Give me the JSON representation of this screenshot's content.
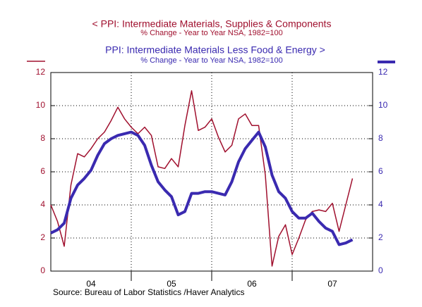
{
  "chart_data": {
    "type": "line",
    "series": [
      {
        "name": "<  PPI: Intermediate Materials, Supplies & Components",
        "subtitle": "% Change - Year to Year        NSA, 1982=100",
        "color": "#a0102e",
        "axis": "y",
        "values": [
          4.0,
          3.0,
          1.5,
          5.2,
          7.1,
          6.9,
          7.4,
          8.0,
          8.4,
          9.1,
          9.9,
          9.2,
          8.7,
          8.3,
          8.7,
          8.2,
          6.3,
          6.2,
          6.8,
          6.3,
          8.8,
          10.9,
          8.5,
          8.7,
          9.2,
          8.1,
          7.2,
          7.6,
          9.2,
          9.5,
          8.8,
          8.8,
          5.8,
          0.3,
          2.1,
          2.8,
          1.0,
          2.0,
          3.1,
          3.6,
          3.7,
          3.6,
          4.1,
          2.4,
          4.0,
          5.6
        ]
      },
      {
        "name": "PPI: Intermediate Materials Less Food & Energy  >",
        "subtitle": "% Change - Year to Year        NSA, 1982=100",
        "color": "#3a2ab0",
        "axis": "y2",
        "values": [
          2.3,
          2.5,
          2.9,
          4.4,
          5.2,
          5.6,
          6.1,
          7.0,
          7.7,
          8.0,
          8.2,
          8.3,
          8.4,
          8.2,
          7.6,
          6.4,
          5.4,
          4.9,
          4.5,
          3.4,
          3.6,
          4.7,
          4.7,
          4.8,
          4.8,
          4.7,
          4.6,
          5.4,
          6.6,
          7.4,
          7.9,
          8.4,
          7.5,
          5.8,
          4.8,
          4.4,
          3.6,
          3.2,
          3.2,
          3.5,
          3.0,
          2.6,
          2.4,
          1.6,
          1.7,
          1.9
        ]
      }
    ],
    "x": [
      0,
      1,
      2,
      3,
      4,
      5,
      6,
      7,
      8,
      9,
      10,
      11,
      12,
      13,
      14,
      15,
      16,
      17,
      18,
      19,
      20,
      21,
      22,
      23,
      24,
      25,
      26,
      27,
      28,
      29,
      30,
      31,
      32,
      33,
      34,
      35,
      36,
      37,
      38,
      39,
      40,
      41,
      42,
      43,
      44,
      45
    ],
    "xlim": [
      0,
      48
    ],
    "xticks": [
      {
        "value": 6,
        "label": "04"
      },
      {
        "value": 18,
        "label": "05"
      },
      {
        "value": 30,
        "label": "06"
      },
      {
        "value": 42,
        "label": "07"
      }
    ],
    "xgrid": [
      12,
      24,
      36
    ],
    "ylim": [
      0,
      12
    ],
    "yticks": [
      0,
      2,
      4,
      6,
      8,
      10,
      12
    ],
    "y2lim": [
      0,
      12
    ],
    "y2ticks": [
      0,
      2,
      4,
      6,
      8,
      10,
      12
    ],
    "grid": true,
    "source": "Source:  Bureau of Labor Statistics /Haver Analytics"
  }
}
